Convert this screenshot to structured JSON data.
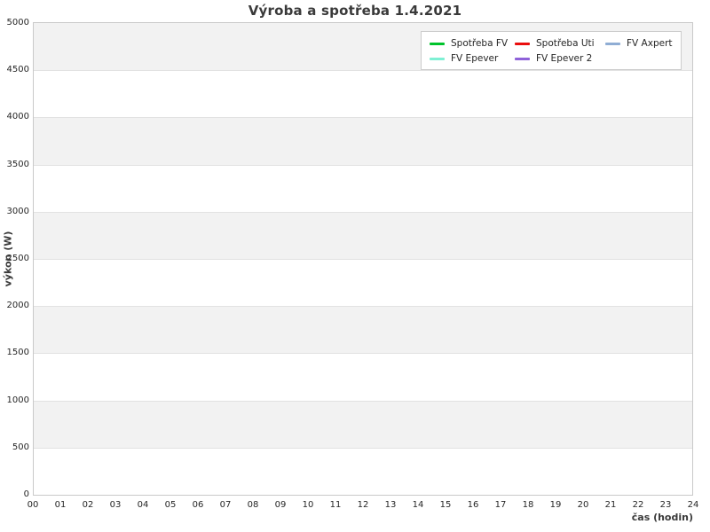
{
  "chart_data": {
    "type": "line",
    "title": "Výroba a spotřeba 1.4.2021",
    "xlabel": "čas (hodin)",
    "ylabel": "výkon (W)",
    "xlim": [
      0,
      24
    ],
    "ylim": [
      0,
      5000
    ],
    "x_ticks": [
      "00",
      "01",
      "02",
      "03",
      "04",
      "05",
      "06",
      "07",
      "08",
      "09",
      "10",
      "11",
      "12",
      "13",
      "14",
      "15",
      "16",
      "17",
      "18",
      "19",
      "20",
      "21",
      "22",
      "23",
      "24"
    ],
    "y_ticks": [
      0,
      500,
      1000,
      1500,
      2000,
      2500,
      3000,
      3500,
      4000,
      4500,
      5000
    ],
    "grid": "horizontal",
    "gridline_color": "#e2e2e2",
    "plot_border_color": "#c9c9c9",
    "background_bands": {
      "colors": [
        "#ffffff",
        "#f2f2f2"
      ],
      "band_size": 500
    },
    "legend_position": "top-right",
    "legend_columns": 3,
    "series": [
      {
        "name": "Spotřeba FV",
        "color": "#00c32b",
        "values": []
      },
      {
        "name": "Spotřeba Uti",
        "color": "#ea0e0e",
        "values": []
      },
      {
        "name": "FV Axpert",
        "color": "#8fadd4",
        "values": []
      },
      {
        "name": "FV Epever",
        "color": "#7ff0d4",
        "values": []
      },
      {
        "name": "FV Epever 2",
        "color": "#8f62d9",
        "values": []
      }
    ]
  }
}
